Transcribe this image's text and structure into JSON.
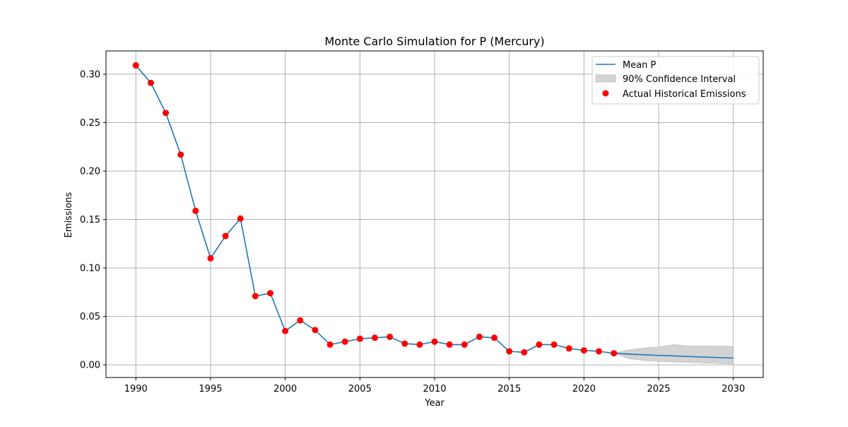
{
  "chart_data": {
    "type": "line",
    "title": "Monte Carlo Simulation for P (Mercury)",
    "xlabel": "Year",
    "ylabel": "Emissions",
    "xlim": [
      1988,
      2032
    ],
    "ylim": [
      -0.013,
      0.324
    ],
    "xticks": [
      1990,
      1995,
      2000,
      2005,
      2010,
      2015,
      2020,
      2025,
      2030
    ],
    "yticks": [
      0.0,
      0.05,
      0.1,
      0.15,
      0.2,
      0.25,
      0.3
    ],
    "xtick_labels": [
      "1990",
      "1995",
      "2000",
      "2005",
      "2010",
      "2015",
      "2020",
      "2025",
      "2030"
    ],
    "ytick_labels": [
      "0.00",
      "0.05",
      "0.10",
      "0.15",
      "0.20",
      "0.25",
      "0.30"
    ],
    "grid": true,
    "legend_position": "top-right",
    "colors": {
      "mean_line": "#1f77b4",
      "scatter": "#ff0000",
      "band": "#d3d3d3",
      "band_edge": "#b5b5b5"
    },
    "series": [
      {
        "name": "Mean P",
        "type": "line",
        "x": [
          1990,
          1991,
          1992,
          1993,
          1994,
          1995,
          1996,
          1997,
          1998,
          1999,
          2000,
          2001,
          2002,
          2003,
          2004,
          2005,
          2006,
          2007,
          2008,
          2009,
          2010,
          2011,
          2012,
          2013,
          2014,
          2015,
          2016,
          2017,
          2018,
          2019,
          2020,
          2021,
          2022,
          2023,
          2024,
          2025,
          2026,
          2027,
          2028,
          2029,
          2030
        ],
        "y": [
          0.309,
          0.291,
          0.26,
          0.217,
          0.159,
          0.11,
          0.133,
          0.151,
          0.071,
          0.074,
          0.035,
          0.046,
          0.036,
          0.021,
          0.024,
          0.027,
          0.028,
          0.029,
          0.022,
          0.021,
          0.024,
          0.021,
          0.021,
          0.029,
          0.028,
          0.014,
          0.013,
          0.021,
          0.021,
          0.017,
          0.015,
          0.014,
          0.012,
          0.0112,
          0.0105,
          0.0098,
          0.0093,
          0.0087,
          0.0081,
          0.0076,
          0.0071
        ]
      },
      {
        "name": "90% Confidence Interval",
        "type": "band",
        "x": [
          2022,
          2023,
          2024,
          2025,
          2026,
          2027,
          2028,
          2029,
          2030
        ],
        "lower": [
          0.012,
          0.0065,
          0.0045,
          0.0035,
          0.003,
          0.0025,
          0.002,
          0.0015,
          0.001
        ],
        "upper": [
          0.012,
          0.0155,
          0.0175,
          0.0185,
          0.021,
          0.0195,
          0.0195,
          0.0195,
          0.019
        ]
      },
      {
        "name": "Actual Historical Emissions",
        "type": "scatter",
        "x": [
          1990,
          1991,
          1992,
          1993,
          1994,
          1995,
          1996,
          1997,
          1998,
          1999,
          2000,
          2001,
          2002,
          2003,
          2004,
          2005,
          2006,
          2007,
          2008,
          2009,
          2010,
          2011,
          2012,
          2013,
          2014,
          2015,
          2016,
          2017,
          2018,
          2019,
          2020,
          2021,
          2022
        ],
        "y": [
          0.309,
          0.291,
          0.26,
          0.217,
          0.159,
          0.11,
          0.133,
          0.151,
          0.071,
          0.074,
          0.035,
          0.046,
          0.036,
          0.021,
          0.024,
          0.027,
          0.028,
          0.029,
          0.022,
          0.021,
          0.024,
          0.021,
          0.021,
          0.029,
          0.028,
          0.014,
          0.013,
          0.021,
          0.021,
          0.017,
          0.015,
          0.014,
          0.012
        ]
      }
    ],
    "legend": {
      "entries": [
        "Mean P",
        "90% Confidence Interval",
        "Actual Historical Emissions"
      ]
    }
  }
}
